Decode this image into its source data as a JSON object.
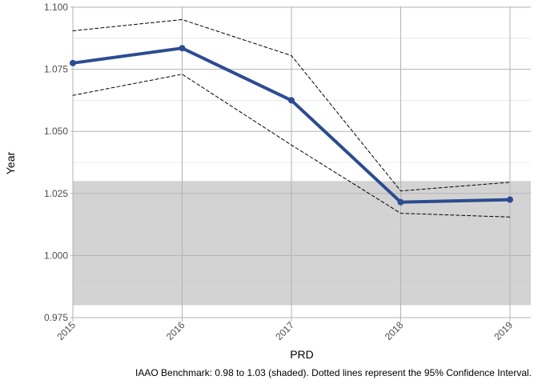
{
  "chart_data": {
    "type": "line",
    "title": "",
    "xlabel": "PRD",
    "ylabel": "Year",
    "caption": "IAAO Benchmark: 0.98 to 1.03 (shaded). Dotted lines represent the 95% Confidence Interval.",
    "categories": [
      "2015",
      "2016",
      "2017",
      "2018",
      "2019"
    ],
    "ylim": [
      0.975,
      1.1
    ],
    "yticks": [
      0.975,
      1.0,
      1.025,
      1.05,
      1.075,
      1.1
    ],
    "ytick_labels": [
      "0.975",
      "1.000",
      "1.025",
      "1.050",
      "1.075",
      "1.100"
    ],
    "grid": true,
    "benchmark_band": {
      "low": 0.98,
      "high": 1.03,
      "color": "#d3d3d3"
    },
    "series": [
      {
        "values": [
          1.0775,
          1.0835,
          1.0625,
          1.0215,
          1.0225
        ],
        "color": "#2c4c91",
        "style": "solid",
        "markers": true
      },
      {
        "values": [
          1.0905,
          1.095,
          1.0805,
          1.026,
          1.0295
        ],
        "color": "#000000",
        "style": "dashed"
      },
      {
        "values": [
          1.0645,
          1.073,
          1.0445,
          1.017,
          1.0155
        ],
        "color": "#000000",
        "style": "dashed"
      }
    ]
  }
}
